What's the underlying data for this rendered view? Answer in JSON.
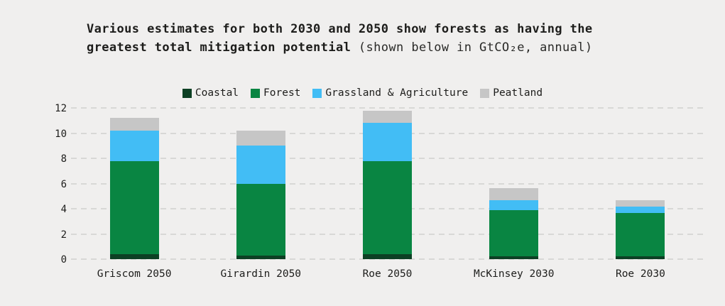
{
  "title": {
    "bold": "Various estimates for both 2030 and 2050 show forests as having the greatest total mitigation potential",
    "normal": " (shown below in GtCO₂e, annual)"
  },
  "legend": [
    {
      "label": "Coastal",
      "color": "#0d4024"
    },
    {
      "label": "Forest",
      "color": "#098542"
    },
    {
      "label": "Grassland & Agriculture",
      "color": "#42bdf5"
    },
    {
      "label": "Peatland",
      "color": "#c6c6c6"
    }
  ],
  "colors": {
    "background": "#f0efee",
    "gridline": "#d8d8d6",
    "text": "#1d1d1b"
  },
  "chart_data": {
    "type": "bar",
    "stacked": true,
    "title": "Various estimates for both 2030 and 2050 show forests as having the greatest total mitigation potential (shown below in GtCO₂e, annual)",
    "unit": "GtCO₂e, annual",
    "categories": [
      "Griscom 2050",
      "Girardin 2050",
      "Roe 2050",
      "McKinsey 2030",
      "Roe 2030"
    ],
    "series": [
      {
        "name": "Coastal",
        "color": "#0d4024",
        "values": [
          0.4,
          0.3,
          0.4,
          0.2,
          0.2
        ]
      },
      {
        "name": "Forest",
        "color": "#098542",
        "values": [
          7.4,
          5.7,
          7.4,
          3.7,
          3.45
        ]
      },
      {
        "name": "Grassland & Agriculture",
        "color": "#42bdf5",
        "values": [
          2.4,
          3.0,
          3.0,
          0.8,
          0.5
        ]
      },
      {
        "name": "Peatland",
        "color": "#c6c6c6",
        "values": [
          1.0,
          1.2,
          1.0,
          0.95,
          0.5
        ]
      }
    ],
    "totals": [
      11.2,
      10.2,
      11.8,
      5.65,
      4.65
    ],
    "xlabel": "",
    "ylabel": "",
    "ylim": [
      0,
      12
    ],
    "yticks": [
      0,
      2,
      4,
      6,
      8,
      10,
      12
    ],
    "grid": "dashed-horizontal",
    "legend_position": "top-center"
  }
}
